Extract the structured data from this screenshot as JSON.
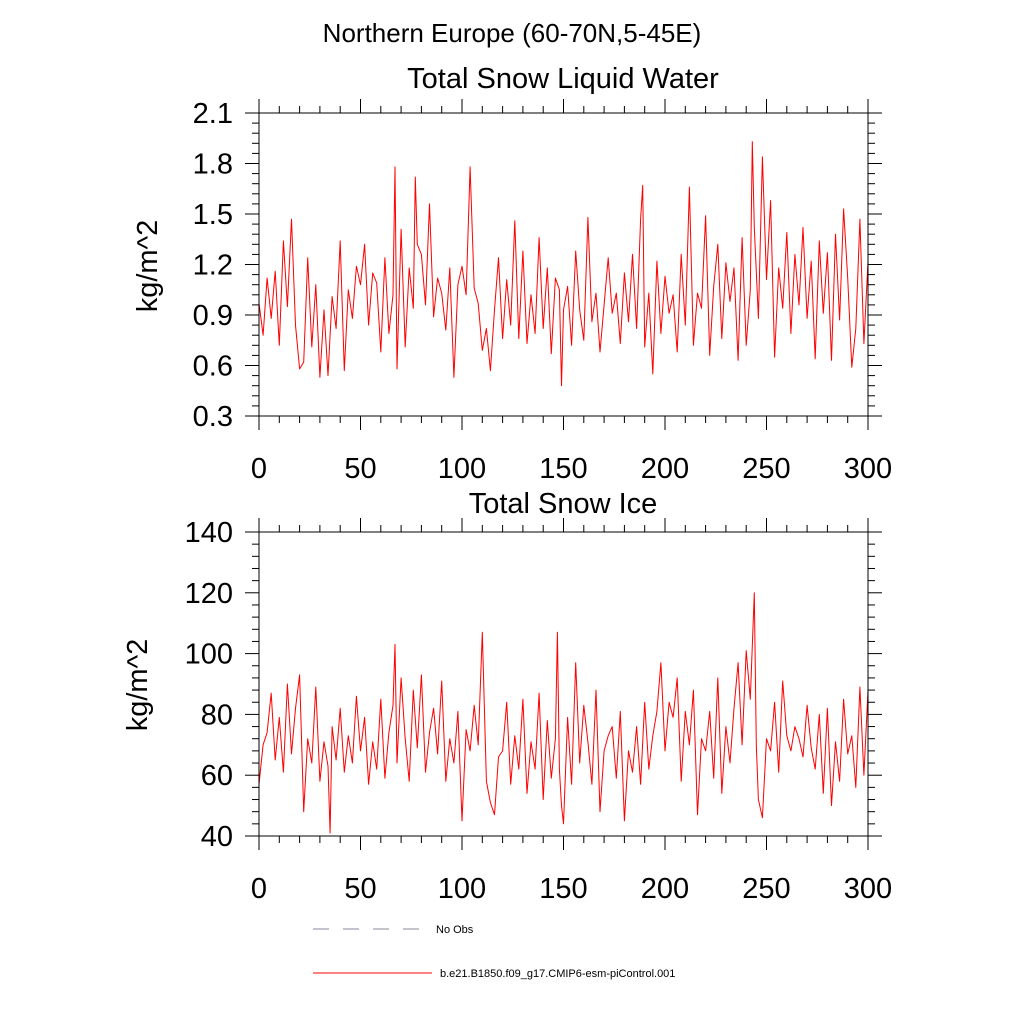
{
  "figure_title": "Northern Europe (60-70N,5-45E)",
  "chart_data": [
    {
      "type": "line",
      "title": "Total Snow Liquid Water",
      "xlabel": "",
      "ylabel": "kg/m^2",
      "xlim": [
        0,
        300
      ],
      "ylim": [
        0.3,
        2.1
      ],
      "x_ticks": [
        0,
        50,
        100,
        150,
        200,
        250,
        300
      ],
      "x_tick_labels": [
        "0",
        "50",
        "100",
        "150",
        "200",
        "250",
        "300"
      ],
      "y_ticks": [
        0.3,
        0.6,
        0.9,
        1.2,
        1.5,
        1.8,
        2.1
      ],
      "y_tick_labels": [
        "0.3",
        "0.6",
        "0.9",
        "1.2",
        "1.5",
        "1.8",
        "2.1"
      ],
      "series": [
        {
          "name": "b.e21.B1850.f09_g17.CMIP6-esm-piControl.001",
          "color": "#ff0000",
          "x": [
            0,
            2,
            4,
            6,
            8,
            10,
            12,
            14,
            16,
            18,
            20,
            22,
            24,
            26,
            28,
            30,
            32,
            34,
            36,
            38,
            40,
            42,
            44,
            46,
            48,
            50,
            52,
            54,
            56,
            58,
            60,
            62,
            64,
            66,
            67,
            68,
            70,
            72,
            74,
            76,
            77,
            78,
            80,
            82,
            84,
            86,
            88,
            90,
            92,
            94,
            96,
            98,
            100,
            102,
            104,
            106,
            108,
            110,
            112,
            114,
            116,
            118,
            120,
            122,
            124,
            126,
            128,
            130,
            132,
            134,
            136,
            138,
            140,
            142,
            144,
            146,
            148,
            149,
            150,
            152,
            154,
            156,
            158,
            160,
            162,
            164,
            166,
            168,
            170,
            172,
            174,
            176,
            178,
            180,
            182,
            184,
            186,
            188,
            189,
            190,
            192,
            194,
            196,
            198,
            200,
            202,
            204,
            206,
            208,
            210,
            212,
            214,
            216,
            218,
            220,
            222,
            224,
            226,
            228,
            230,
            232,
            234,
            236,
            238,
            240,
            242,
            243,
            244,
            246,
            248,
            250,
            252,
            254,
            256,
            258,
            260,
            262,
            264,
            266,
            268,
            270,
            272,
            274,
            276,
            278,
            280,
            282,
            284,
            286,
            288,
            290,
            292,
            294,
            296,
            298,
            300
          ],
          "values": [
            0.97,
            0.78,
            1.12,
            0.88,
            1.16,
            0.72,
            1.34,
            0.95,
            1.47,
            0.84,
            0.58,
            0.62,
            1.24,
            0.71,
            1.08,
            0.53,
            0.93,
            0.54,
            1.01,
            0.82,
            1.34,
            0.57,
            1.05,
            0.88,
            1.19,
            1.08,
            1.32,
            0.84,
            1.15,
            1.09,
            0.68,
            1.24,
            0.79,
            1.02,
            1.78,
            0.58,
            1.41,
            0.71,
            1.18,
            0.94,
            1.72,
            1.32,
            1.26,
            0.96,
            1.56,
            0.89,
            1.12,
            1.03,
            0.81,
            1.18,
            0.53,
            1.08,
            1.19,
            1.02,
            1.78,
            1.06,
            0.97,
            0.69,
            0.82,
            0.57,
            0.93,
            1.24,
            0.76,
            1.11,
            0.84,
            1.46,
            0.76,
            1.28,
            0.73,
            1.02,
            0.79,
            1.36,
            0.82,
            1.18,
            0.67,
            1.12,
            1.05,
            0.48,
            0.93,
            1.07,
            0.72,
            1.28,
            0.93,
            0.75,
            1.48,
            0.86,
            1.03,
            0.68,
            0.96,
            1.24,
            0.91,
            1.03,
            0.73,
            1.15,
            0.86,
            1.26,
            0.82,
            1.47,
            1.67,
            0.71,
            1.03,
            0.55,
            1.22,
            0.79,
            1.13,
            0.91,
            1.02,
            0.68,
            1.26,
            0.84,
            1.66,
            0.72,
            1.03,
            0.94,
            1.49,
            0.66,
            1.07,
            1.32,
            0.76,
            1.21,
            0.98,
            1.18,
            0.63,
            1.36,
            0.72,
            1.05,
            1.93,
            1.42,
            0.88,
            1.84,
            1.11,
            1.58,
            0.65,
            1.18,
            0.94,
            1.39,
            0.79,
            1.26,
            0.96,
            1.42,
            0.88,
            1.22,
            0.64,
            1.34,
            0.91,
            1.27,
            0.63,
            1.38,
            0.87,
            1.53,
            1.12,
            0.59,
            0.82,
            1.47,
            0.73,
            1.22
          ],
          "stroke_width": 1
        }
      ]
    },
    {
      "type": "line",
      "title": "Total Snow Ice",
      "xlabel": "",
      "ylabel": "kg/m^2",
      "xlim": [
        0,
        300
      ],
      "ylim": [
        40,
        140
      ],
      "x_ticks": [
        0,
        50,
        100,
        150,
        200,
        250,
        300
      ],
      "x_tick_labels": [
        "0",
        "50",
        "100",
        "150",
        "200",
        "250",
        "300"
      ],
      "y_ticks": [
        40,
        60,
        80,
        100,
        120,
        140
      ],
      "y_tick_labels": [
        "40",
        "60",
        "80",
        "100",
        "120",
        "140"
      ],
      "series": [
        {
          "name": "b.e21.B1850.f09_g17.CMIP6-esm-piControl.001",
          "color": "#ff0000",
          "x": [
            0,
            2,
            4,
            6,
            8,
            10,
            12,
            14,
            16,
            18,
            20,
            22,
            24,
            26,
            28,
            30,
            32,
            34,
            35,
            36,
            38,
            40,
            42,
            44,
            46,
            48,
            50,
            52,
            54,
            56,
            58,
            60,
            62,
            64,
            66,
            67,
            68,
            70,
            72,
            74,
            76,
            78,
            80,
            82,
            84,
            86,
            88,
            90,
            92,
            94,
            96,
            98,
            100,
            102,
            104,
            106,
            108,
            110,
            112,
            114,
            116,
            118,
            120,
            122,
            124,
            126,
            128,
            130,
            132,
            134,
            136,
            138,
            140,
            142,
            144,
            146,
            147,
            148,
            149,
            150,
            152,
            154,
            156,
            158,
            160,
            162,
            164,
            166,
            168,
            170,
            172,
            174,
            176,
            178,
            180,
            182,
            184,
            186,
            188,
            190,
            192,
            194,
            196,
            198,
            200,
            202,
            204,
            206,
            208,
            210,
            212,
            214,
            216,
            218,
            220,
            222,
            224,
            226,
            228,
            230,
            232,
            234,
            236,
            238,
            240,
            242,
            244,
            245,
            246,
            248,
            250,
            252,
            254,
            256,
            258,
            260,
            262,
            264,
            266,
            268,
            270,
            272,
            274,
            276,
            278,
            280,
            282,
            284,
            286,
            288,
            290,
            292,
            294,
            296,
            298,
            300
          ],
          "values": [
            57,
            70,
            74,
            87,
            65,
            79,
            61,
            90,
            67,
            82,
            93,
            48,
            72,
            64,
            89,
            58,
            71,
            63,
            41,
            76,
            65,
            82,
            61,
            73,
            64,
            86,
            68,
            79,
            57,
            71,
            62,
            85,
            59,
            74,
            83,
            103,
            64,
            92,
            72,
            58,
            88,
            69,
            93,
            61,
            74,
            82,
            67,
            91,
            58,
            72,
            64,
            81,
            45,
            75,
            68,
            83,
            70,
            107,
            58,
            51,
            47,
            66,
            68,
            84,
            57,
            73,
            62,
            85,
            54,
            71,
            62,
            87,
            52,
            78,
            59,
            72,
            107,
            62,
            50,
            44,
            79,
            57,
            97,
            64,
            83,
            71,
            57,
            88,
            48,
            68,
            73,
            76,
            59,
            81,
            45,
            68,
            61,
            76,
            57,
            84,
            62,
            73,
            81,
            97,
            68,
            84,
            79,
            92,
            58,
            81,
            70,
            88,
            47,
            72,
            68,
            81,
            59,
            92,
            54,
            76,
            64,
            82,
            97,
            70,
            101,
            85,
            120,
            70,
            52,
            46,
            72,
            68,
            84,
            61,
            91,
            73,
            68,
            76,
            72,
            66,
            83,
            69,
            62,
            80,
            54,
            82,
            50,
            71,
            58,
            85,
            67,
            73,
            56,
            89,
            60,
            88
          ]
        }
      ]
    }
  ],
  "legend": {
    "items": [
      {
        "label": "No Obs",
        "color": "#8a8a9a",
        "style": "dashed"
      },
      {
        "label": "b.e21.B1850.f09_g17.CMIP6-esm-piControl.001",
        "color": "#ff0000",
        "style": "solid"
      }
    ]
  }
}
